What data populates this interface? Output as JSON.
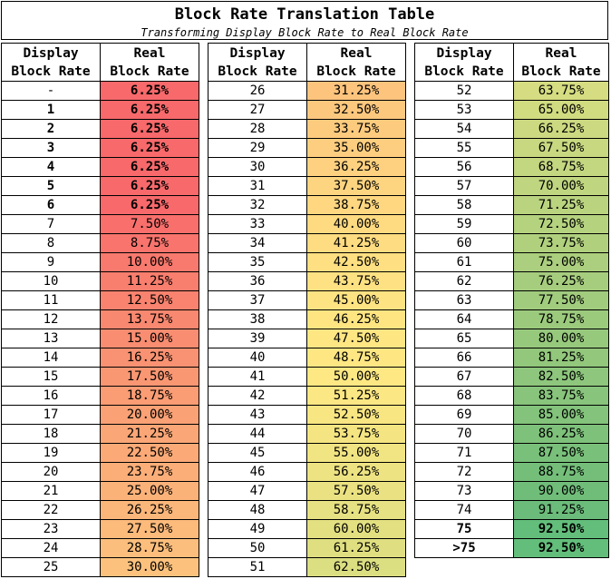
{
  "title": "Block Rate Translation Table",
  "subtitle": "Transforming Display Block Rate to Real Block Rate",
  "header": {
    "display_l1": "Display",
    "display_l2": "Block Rate",
    "real_l1": "Real",
    "real_l2": "Block Rate"
  },
  "columns": [
    {
      "rows": [
        {
          "display": "-",
          "real": "6.25%",
          "bold": false,
          "real_bold": true,
          "color": "#f8696b"
        },
        {
          "display": "1",
          "real": "6.25%",
          "bold": true,
          "real_bold": true,
          "color": "#f8696b"
        },
        {
          "display": "2",
          "real": "6.25%",
          "bold": true,
          "real_bold": true,
          "color": "#f8696b"
        },
        {
          "display": "3",
          "real": "6.25%",
          "bold": true,
          "real_bold": true,
          "color": "#f8696b"
        },
        {
          "display": "4",
          "real": "6.25%",
          "bold": true,
          "real_bold": true,
          "color": "#f8696b"
        },
        {
          "display": "5",
          "real": "6.25%",
          "bold": true,
          "real_bold": true,
          "color": "#f8696b"
        },
        {
          "display": "6",
          "real": "6.25%",
          "bold": true,
          "real_bold": true,
          "color": "#f8696b"
        },
        {
          "display": "7",
          "real": "7.50%",
          "bold": false,
          "real_bold": false,
          "color": "#f86f6c"
        },
        {
          "display": "8",
          "real": "8.75%",
          "bold": false,
          "real_bold": false,
          "color": "#f8746d"
        },
        {
          "display": "9",
          "real": "10.00%",
          "bold": false,
          "real_bold": false,
          "color": "#f8796e"
        },
        {
          "display": "10",
          "real": "11.25%",
          "bold": false,
          "real_bold": false,
          "color": "#f87e6e"
        },
        {
          "display": "11",
          "real": "12.50%",
          "bold": false,
          "real_bold": false,
          "color": "#f9836f"
        },
        {
          "display": "12",
          "real": "13.75%",
          "bold": false,
          "real_bold": false,
          "color": "#f98870"
        },
        {
          "display": "13",
          "real": "15.00%",
          "bold": false,
          "real_bold": false,
          "color": "#f98d71"
        },
        {
          "display": "14",
          "real": "16.25%",
          "bold": false,
          "real_bold": false,
          "color": "#f99272"
        },
        {
          "display": "15",
          "real": "17.50%",
          "bold": false,
          "real_bold": false,
          "color": "#fa9773"
        },
        {
          "display": "16",
          "real": "18.75%",
          "bold": false,
          "real_bold": false,
          "color": "#fa9c74"
        },
        {
          "display": "17",
          "real": "20.00%",
          "bold": false,
          "real_bold": false,
          "color": "#faa175"
        },
        {
          "display": "18",
          "real": "21.25%",
          "bold": false,
          "real_bold": false,
          "color": "#faa676"
        },
        {
          "display": "19",
          "real": "22.50%",
          "bold": false,
          "real_bold": false,
          "color": "#fbaa77"
        },
        {
          "display": "20",
          "real": "23.75%",
          "bold": false,
          "real_bold": false,
          "color": "#fbae78"
        },
        {
          "display": "21",
          "real": "25.00%",
          "bold": false,
          "real_bold": false,
          "color": "#fbb279"
        },
        {
          "display": "22",
          "real": "26.25%",
          "bold": false,
          "real_bold": false,
          "color": "#fbb67a"
        },
        {
          "display": "23",
          "real": "27.50%",
          "bold": false,
          "real_bold": false,
          "color": "#fcba7b"
        },
        {
          "display": "24",
          "real": "28.75%",
          "bold": false,
          "real_bold": false,
          "color": "#fcbe7c"
        },
        {
          "display": "25",
          "real": "30.00%",
          "bold": false,
          "real_bold": false,
          "color": "#fcc27d"
        }
      ]
    },
    {
      "rows": [
        {
          "display": "26",
          "real": "31.25%",
          "bold": false,
          "real_bold": false,
          "color": "#fcc47d"
        },
        {
          "display": "27",
          "real": "32.50%",
          "bold": false,
          "real_bold": false,
          "color": "#fcc87e"
        },
        {
          "display": "28",
          "real": "33.75%",
          "bold": false,
          "real_bold": false,
          "color": "#fdcb7e"
        },
        {
          "display": "29",
          "real": "35.00%",
          "bold": false,
          "real_bold": false,
          "color": "#fdce7f"
        },
        {
          "display": "30",
          "real": "36.25%",
          "bold": false,
          "real_bold": false,
          "color": "#fdd17f"
        },
        {
          "display": "31",
          "real": "37.50%",
          "bold": false,
          "real_bold": false,
          "color": "#fdd480"
        },
        {
          "display": "32",
          "real": "38.75%",
          "bold": false,
          "real_bold": false,
          "color": "#fed780"
        },
        {
          "display": "33",
          "real": "40.00%",
          "bold": false,
          "real_bold": false,
          "color": "#feda81"
        },
        {
          "display": "34",
          "real": "41.25%",
          "bold": false,
          "real_bold": false,
          "color": "#fedc81"
        },
        {
          "display": "35",
          "real": "42.50%",
          "bold": false,
          "real_bold": false,
          "color": "#fedf81"
        },
        {
          "display": "36",
          "real": "43.75%",
          "bold": false,
          "real_bold": false,
          "color": "#fee182"
        },
        {
          "display": "37",
          "real": "45.00%",
          "bold": false,
          "real_bold": false,
          "color": "#fee382"
        },
        {
          "display": "38",
          "real": "46.25%",
          "bold": false,
          "real_bold": false,
          "color": "#fee582"
        },
        {
          "display": "39",
          "real": "47.50%",
          "bold": false,
          "real_bold": false,
          "color": "#fee683"
        },
        {
          "display": "40",
          "real": "48.75%",
          "bold": false,
          "real_bold": false,
          "color": "#fee783"
        },
        {
          "display": "41",
          "real": "50.00%",
          "bold": false,
          "real_bold": false,
          "color": "#fee883"
        },
        {
          "display": "42",
          "real": "51.25%",
          "bold": false,
          "real_bold": false,
          "color": "#fbe783"
        },
        {
          "display": "43",
          "real": "52.50%",
          "bold": false,
          "real_bold": false,
          "color": "#f8e683"
        },
        {
          "display": "44",
          "real": "53.75%",
          "bold": false,
          "real_bold": false,
          "color": "#f4e582"
        },
        {
          "display": "45",
          "real": "55.00%",
          "bold": false,
          "real_bold": false,
          "color": "#f1e482"
        },
        {
          "display": "46",
          "real": "56.25%",
          "bold": false,
          "real_bold": false,
          "color": "#ede382"
        },
        {
          "display": "47",
          "real": "57.50%",
          "bold": false,
          "real_bold": false,
          "color": "#eae282"
        },
        {
          "display": "48",
          "real": "58.75%",
          "bold": false,
          "real_bold": false,
          "color": "#e6e182"
        },
        {
          "display": "49",
          "real": "60.00%",
          "bold": false,
          "real_bold": false,
          "color": "#e3e081"
        },
        {
          "display": "50",
          "real": "61.25%",
          "bold": false,
          "real_bold": false,
          "color": "#dfdf81"
        },
        {
          "display": "51",
          "real": "62.50%",
          "bold": false,
          "real_bold": false,
          "color": "#dbde81"
        }
      ]
    },
    {
      "rows": [
        {
          "display": "52",
          "real": "63.75%",
          "bold": false,
          "real_bold": false,
          "color": "#d5dc81"
        },
        {
          "display": "53",
          "real": "65.00%",
          "bold": false,
          "real_bold": false,
          "color": "#d1db80"
        },
        {
          "display": "54",
          "real": "66.25%",
          "bold": false,
          "real_bold": false,
          "color": "#ccd980"
        },
        {
          "display": "55",
          "real": "67.50%",
          "bold": false,
          "real_bold": false,
          "color": "#c8d880"
        },
        {
          "display": "56",
          "real": "68.75%",
          "bold": false,
          "real_bold": false,
          "color": "#c3d680"
        },
        {
          "display": "57",
          "real": "70.00%",
          "bold": false,
          "real_bold": false,
          "color": "#bfd57f"
        },
        {
          "display": "58",
          "real": "71.25%",
          "bold": false,
          "real_bold": false,
          "color": "#bad37f"
        },
        {
          "display": "59",
          "real": "72.50%",
          "bold": false,
          "real_bold": false,
          "color": "#b5d27f"
        },
        {
          "display": "60",
          "real": "73.75%",
          "bold": false,
          "real_bold": false,
          "color": "#b0d07e"
        },
        {
          "display": "61",
          "real": "75.00%",
          "bold": false,
          "real_bold": false,
          "color": "#abcf7e"
        },
        {
          "display": "62",
          "real": "76.25%",
          "bold": false,
          "real_bold": false,
          "color": "#a6cd7e"
        },
        {
          "display": "63",
          "real": "77.50%",
          "bold": false,
          "real_bold": false,
          "color": "#a1cc7d"
        },
        {
          "display": "64",
          "real": "78.75%",
          "bold": false,
          "real_bold": false,
          "color": "#9cca7d"
        },
        {
          "display": "65",
          "real": "80.00%",
          "bold": false,
          "real_bold": false,
          "color": "#97c97d"
        },
        {
          "display": "66",
          "real": "81.25%",
          "bold": false,
          "real_bold": false,
          "color": "#92c77c"
        },
        {
          "display": "67",
          "real": "82.50%",
          "bold": false,
          "real_bold": false,
          "color": "#8dc67c"
        },
        {
          "display": "68",
          "real": "83.75%",
          "bold": false,
          "real_bold": false,
          "color": "#88c47c"
        },
        {
          "display": "69",
          "real": "85.00%",
          "bold": false,
          "real_bold": false,
          "color": "#83c37b"
        },
        {
          "display": "70",
          "real": "86.25%",
          "bold": false,
          "real_bold": false,
          "color": "#7ec17b"
        },
        {
          "display": "71",
          "real": "87.50%",
          "bold": false,
          "real_bold": false,
          "color": "#79c07b"
        },
        {
          "display": "72",
          "real": "88.75%",
          "bold": false,
          "real_bold": false,
          "color": "#74be7a"
        },
        {
          "display": "73",
          "real": "90.00%",
          "bold": false,
          "real_bold": false,
          "color": "#70bd7a"
        },
        {
          "display": "74",
          "real": "91.25%",
          "bold": false,
          "real_bold": false,
          "color": "#6bbb7a"
        },
        {
          "display": "75",
          "real": "92.50%",
          "bold": true,
          "real_bold": true,
          "color": "#63be7b"
        },
        {
          "display": ">75",
          "real": "92.50%",
          "bold": true,
          "real_bold": true,
          "color": "#63be7b"
        }
      ]
    }
  ]
}
